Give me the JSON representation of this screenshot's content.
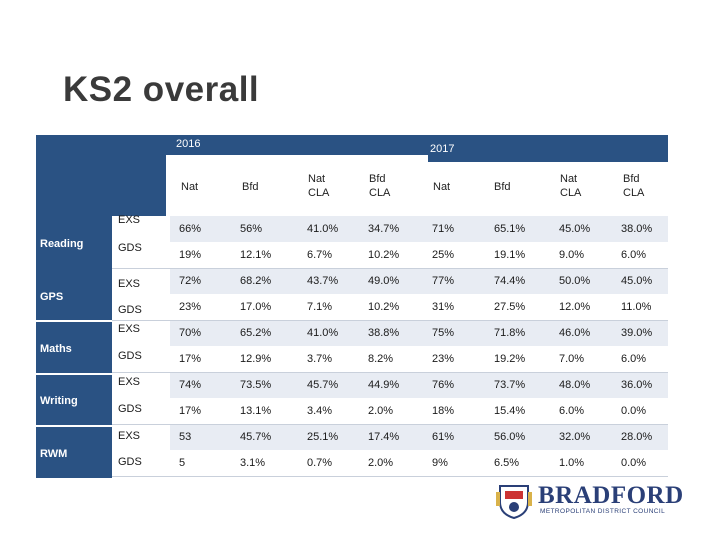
{
  "title": "KS2 overall",
  "years": {
    "y2016": "2016",
    "y2017": "2017"
  },
  "columns": [
    "Nat",
    "Bfd",
    "Nat CLA",
    "Bfd CLA",
    "Nat",
    "Bfd",
    "Nat CLA",
    "Bfd CLA"
  ],
  "groups": [
    "Reading",
    "GPS",
    "Maths",
    "Writing",
    "RWM"
  ],
  "rows": [
    {
      "type": "EXS",
      "values": [
        "66%",
        "56%",
        "41.0%",
        "34.7%",
        "71%",
        "65.1%",
        "45.0%",
        "38.0%"
      ]
    },
    {
      "type": "GDS",
      "values": [
        "19%",
        "12.1%",
        "6.7%",
        "10.2%",
        "25%",
        "19.1%",
        "9.0%",
        "6.0%"
      ]
    },
    {
      "type": "EXS",
      "values": [
        "72%",
        "68.2%",
        "43.7%",
        "49.0%",
        "77%",
        "74.4%",
        "50.0%",
        "45.0%"
      ]
    },
    {
      "type": "GDS",
      "values": [
        "23%",
        "17.0%",
        "7.1%",
        "10.2%",
        "31%",
        "27.5%",
        "12.0%",
        "11.0%"
      ]
    },
    {
      "type": "EXS",
      "values": [
        "70%",
        "65.2%",
        "41.0%",
        "38.8%",
        "75%",
        "71.8%",
        "46.0%",
        "39.0%"
      ]
    },
    {
      "type": "GDS",
      "values": [
        "17%",
        "12.9%",
        "3.7%",
        "8.2%",
        "23%",
        "19.2%",
        "7.0%",
        "6.0%"
      ]
    },
    {
      "type": "EXS",
      "values": [
        "74%",
        "73.5%",
        "45.7%",
        "44.9%",
        "76%",
        "73.7%",
        "48.0%",
        "36.0%"
      ]
    },
    {
      "type": "GDS",
      "values": [
        "17%",
        "13.1%",
        "3.4%",
        "2.0%",
        "18%",
        "15.4%",
        "6.0%",
        "0.0%"
      ]
    },
    {
      "type": "EXS",
      "values": [
        "53",
        "45.7%",
        "25.1%",
        "17.4%",
        "61%",
        "56.0%",
        "32.0%",
        "28.0%"
      ]
    },
    {
      "type": "GDS",
      "values": [
        "5",
        "3.1%",
        "0.7%",
        "2.0%",
        "9%",
        "6.5%",
        "1.0%",
        "0.0%"
      ]
    }
  ],
  "logo": {
    "name": "BRADFORD",
    "subtitle": "METROPOLITAN DISTRICT COUNCIL"
  },
  "colors": {
    "header": "#2a5283",
    "shade": "#e8ecf3",
    "logo": "#2a3f77"
  }
}
